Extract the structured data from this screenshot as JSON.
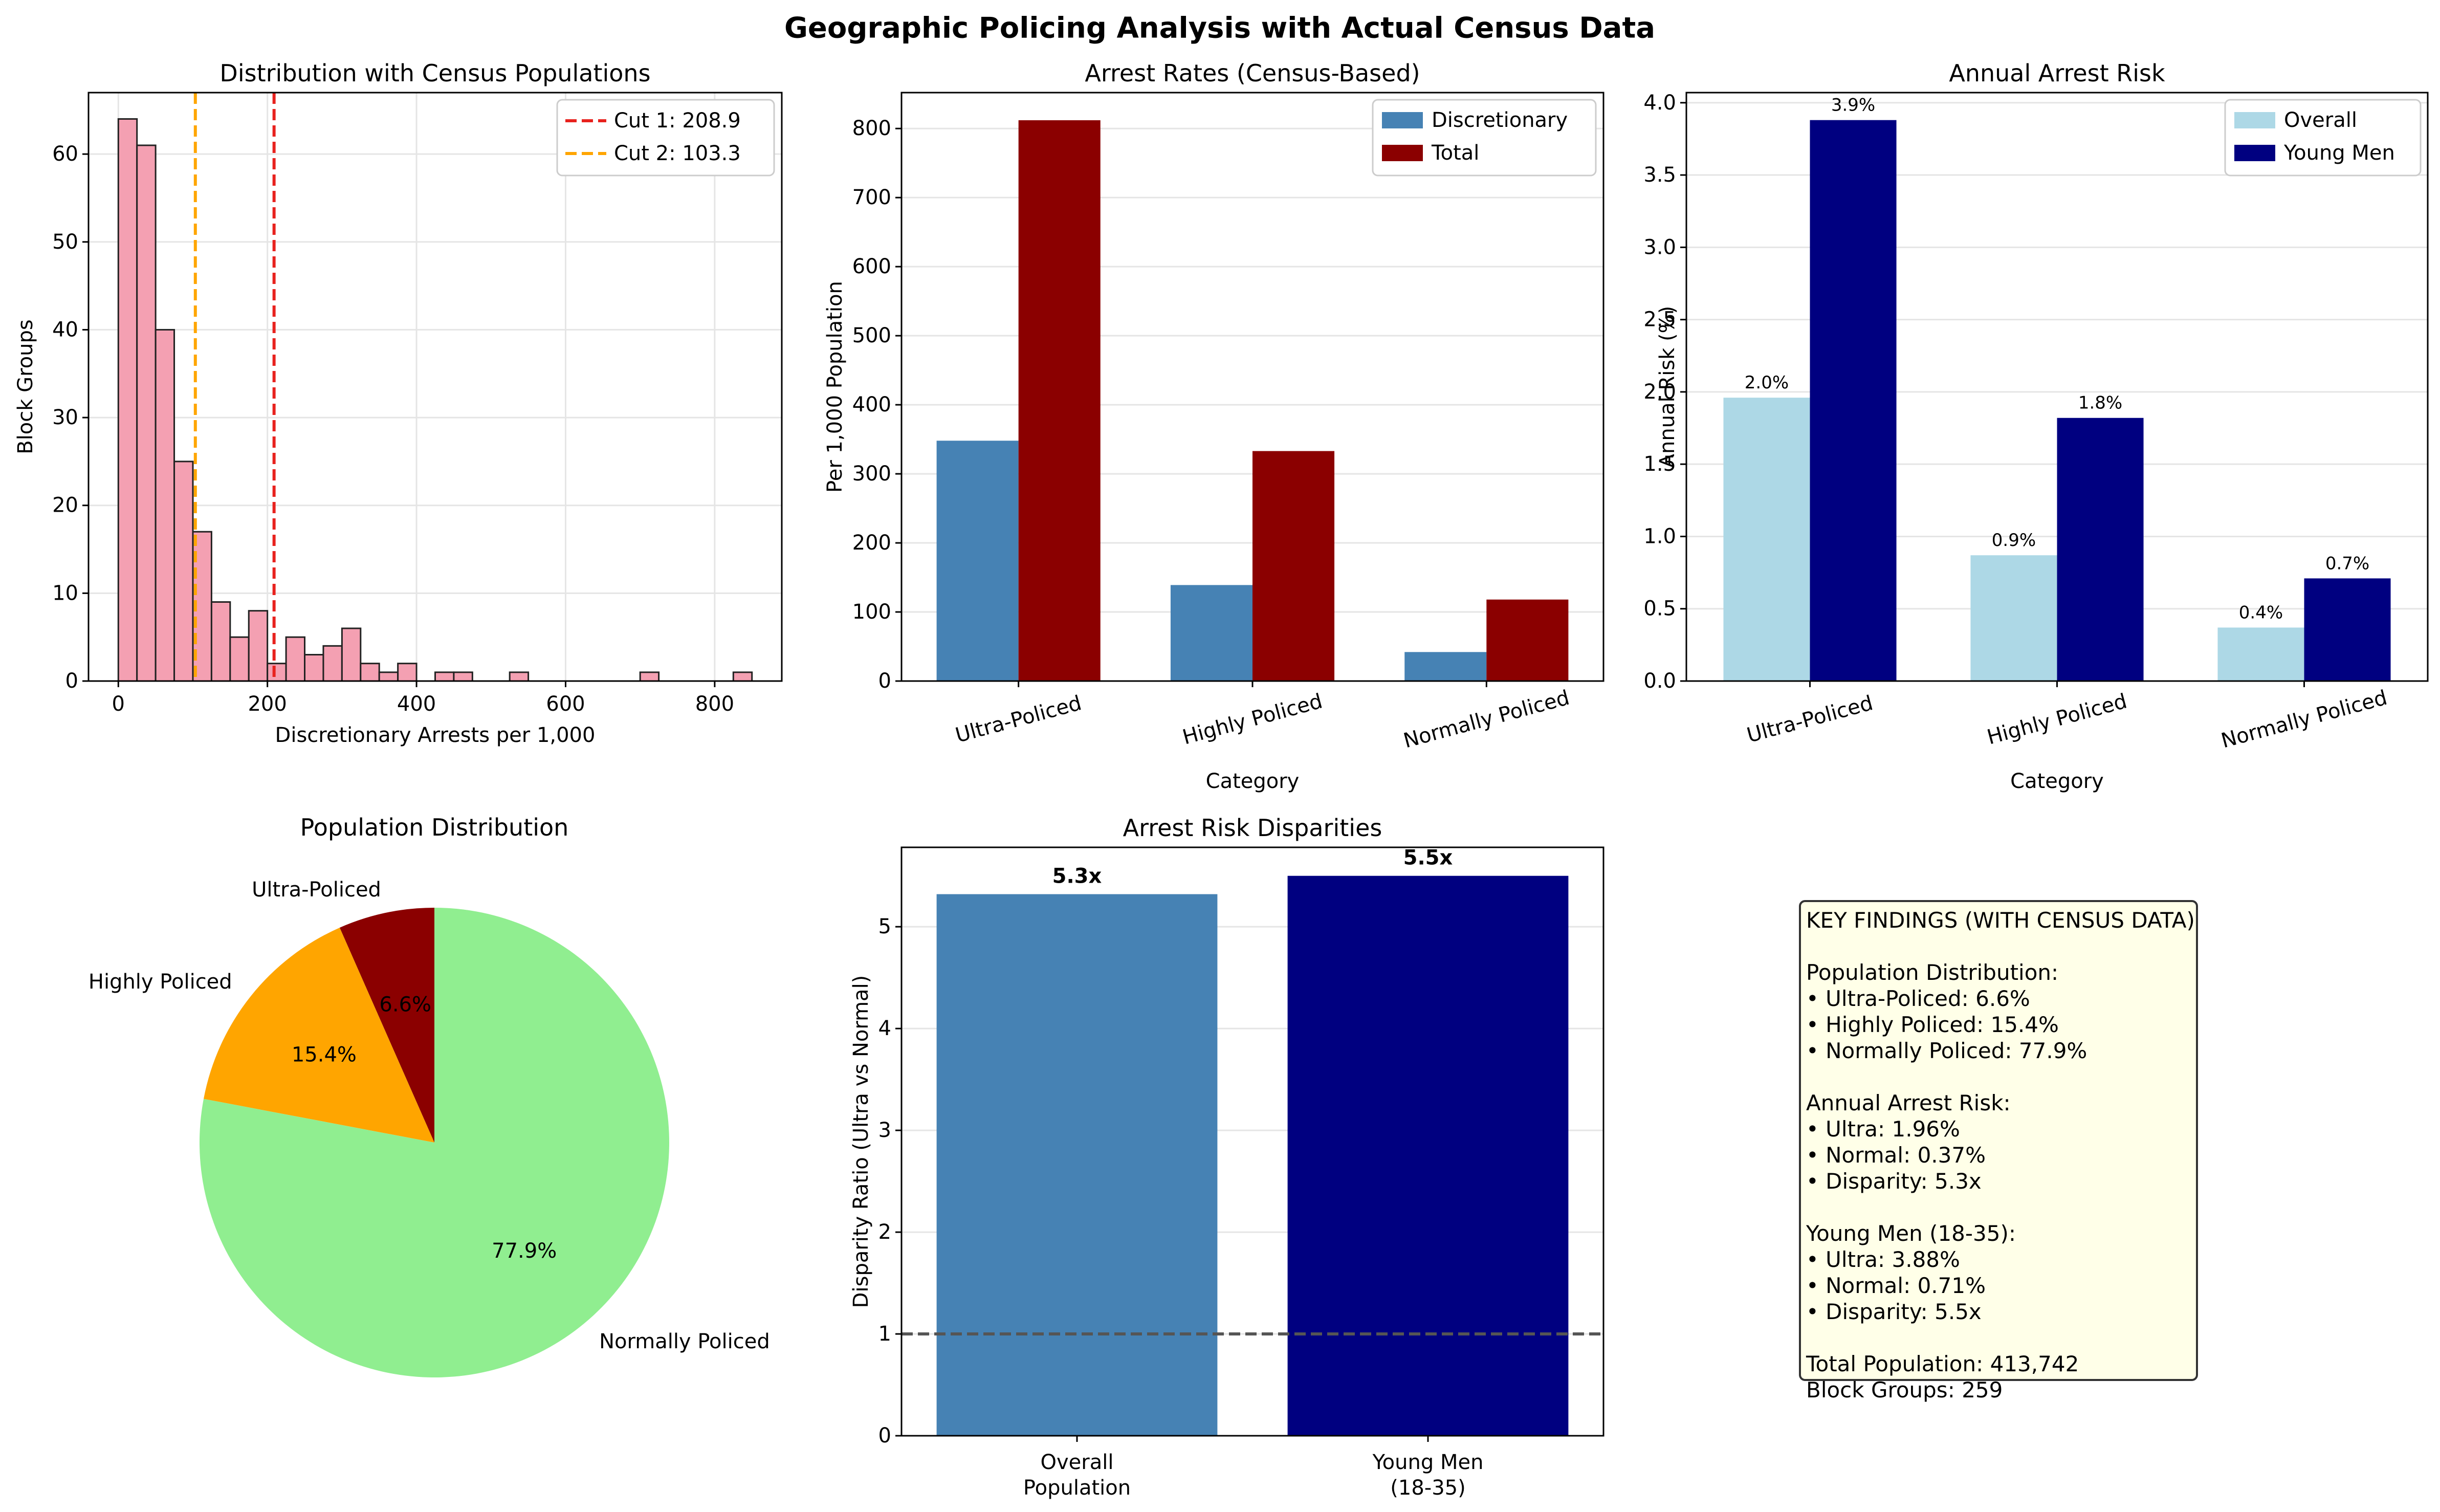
{
  "figure_title": "Geographic Policing Analysis with Actual Census Data",
  "colors": {
    "hist_fill": "#f4a0b2",
    "cut1": "#e8221e",
    "cut2": "#ffa500",
    "discretionary": "#4682b4",
    "total": "#8b0000",
    "overall": "#add8e6",
    "young_men": "#000080",
    "pie_ultra": "#8b0000",
    "pie_high": "#ffa500",
    "pie_normal": "#90ee90",
    "box_bg": "#ffffe8"
  },
  "chart_data": [
    {
      "type": "bar",
      "subtype": "histogram",
      "title": "Distribution with Census Populations",
      "xlabel": "Discretionary Arrests per 1,000",
      "ylabel": "Block Groups",
      "xlim": [
        -40,
        890
      ],
      "ylim": [
        0,
        67
      ],
      "xticks": [
        0,
        200,
        400,
        600,
        800
      ],
      "yticks": [
        0,
        10,
        20,
        30,
        40,
        50,
        60
      ],
      "bin_start": 0,
      "bin_width": 25,
      "counts": [
        64,
        61,
        40,
        25,
        17,
        9,
        5,
        8,
        2,
        5,
        3,
        4,
        6,
        2,
        1,
        2,
        0,
        1,
        1,
        0,
        0,
        1,
        0,
        0,
        0,
        0,
        0,
        0,
        1,
        0,
        0,
        0,
        0,
        1
      ],
      "cutlines": [
        {
          "name": "Cut 1: 208.9",
          "x": 208.9,
          "color": "#e8221e"
        },
        {
          "name": "Cut 2: 103.3",
          "x": 103.3,
          "color": "#ffa500"
        }
      ],
      "legend_position": "upper right",
      "grid": true
    },
    {
      "type": "bar",
      "title": "Arrest Rates (Census-Based)",
      "xlabel": "Category",
      "ylabel": "Per 1,000 Population",
      "categories": [
        "Ultra-Policed",
        "Highly Policed",
        "Normally Policed"
      ],
      "series": [
        {
          "name": "Discretionary",
          "values": [
            348,
            139,
            42
          ],
          "color": "#4682b4"
        },
        {
          "name": "Total",
          "values": [
            812,
            333,
            118
          ],
          "color": "#8b0000"
        }
      ],
      "ylim": [
        0,
        852
      ],
      "yticks": [
        0,
        100,
        200,
        300,
        400,
        500,
        600,
        700,
        800
      ],
      "legend_position": "upper right",
      "grid": true
    },
    {
      "type": "bar",
      "title": "Annual Arrest Risk",
      "xlabel": "Category",
      "ylabel": "Annual Risk (%)",
      "categories": [
        "Ultra-Policed",
        "Highly Policed",
        "Normally Policed"
      ],
      "series": [
        {
          "name": "Overall",
          "values": [
            1.96,
            0.87,
            0.37
          ],
          "labels": [
            "2.0%",
            "0.9%",
            "0.4%"
          ],
          "color": "#add8e6"
        },
        {
          "name": "Young Men",
          "values": [
            3.88,
            1.82,
            0.71
          ],
          "labels": [
            "3.9%",
            "1.8%",
            "0.7%"
          ],
          "color": "#000080"
        }
      ],
      "ylim": [
        0,
        4.07
      ],
      "yticks": [
        "0.0",
        "0.5",
        "1.0",
        "1.5",
        "2.0",
        "2.5",
        "3.0",
        "3.5",
        "4.0"
      ],
      "legend_position": "upper right",
      "grid": true
    },
    {
      "type": "pie",
      "title": "Population Distribution",
      "slices": [
        {
          "label": "Ultra-Policed",
          "value": 6.6,
          "pct": "6.6%",
          "color": "#8b0000"
        },
        {
          "label": "Highly Policed",
          "value": 15.4,
          "pct": "15.4%",
          "color": "#ffa500"
        },
        {
          "label": "Normally Policed",
          "value": 77.9,
          "pct": "77.9%",
          "color": "#90ee90"
        }
      ],
      "start_angle": 90
    },
    {
      "type": "bar",
      "title": "Arrest Risk Disparities",
      "ylabel": "Disparity Ratio (Ultra vs Normal)",
      "categories": [
        [
          "Overall",
          "Population"
        ],
        [
          "Young Men",
          "(18-35)"
        ]
      ],
      "values": [
        5.32,
        5.5
      ],
      "labels": [
        "5.3x",
        "5.5x"
      ],
      "colors": [
        "#4682b4",
        "#000080"
      ],
      "reference_line": 1,
      "ylim": [
        0,
        5.78
      ],
      "yticks": [
        0,
        1,
        2,
        3,
        4,
        5
      ],
      "grid": true
    }
  ],
  "findings": {
    "heading": "KEY FINDINGS (WITH CENSUS DATA)",
    "pop_heading": "Population Distribution:",
    "pop_1": "• Ultra-Policed: 6.6%",
    "pop_2": "• Highly Policed: 15.4%",
    "pop_3": "• Normally Policed: 77.9%",
    "risk_heading": "Annual Arrest Risk:",
    "risk_1": "• Ultra: 1.96%",
    "risk_2": "• Normal: 0.37%",
    "risk_3": "• Disparity: 5.3x",
    "young_heading": "Young Men (18-35):",
    "young_1": "• Ultra: 3.88%",
    "young_2": "• Normal: 0.71%",
    "young_3": "• Disparity: 5.5x",
    "total_pop": "Total Population: 413,742",
    "block_groups": "Block Groups: 259"
  }
}
